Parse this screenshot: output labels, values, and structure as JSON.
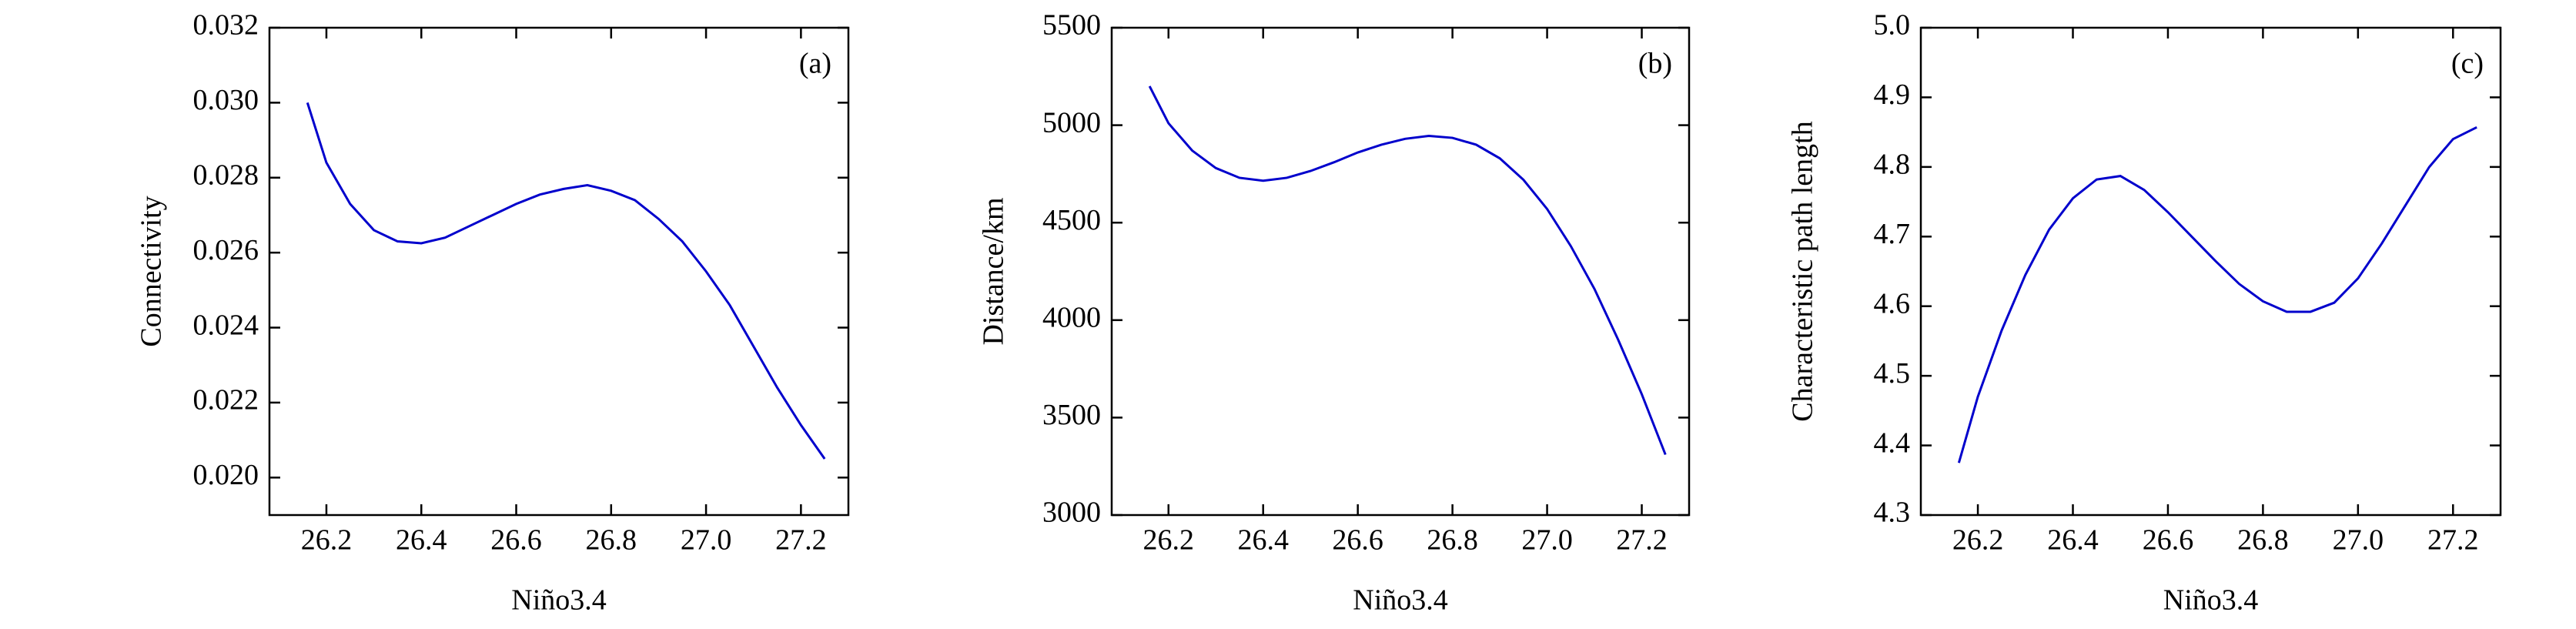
{
  "chart_data": [
    {
      "type": "line",
      "annotation": "(a)",
      "x_label": "Niño3.4",
      "y_label": "Connectivity",
      "x": [
        26.16,
        26.2,
        26.25,
        26.3,
        26.35,
        26.4,
        26.45,
        26.5,
        26.55,
        26.6,
        26.65,
        26.7,
        26.75,
        26.8,
        26.85,
        26.9,
        26.95,
        27.0,
        27.05,
        27.1,
        27.15,
        27.2,
        27.25
      ],
      "series": [
        {
          "color": "#0000cc",
          "values": [
            0.03,
            0.0284,
            0.0273,
            0.0266,
            0.0263,
            0.02625,
            0.0264,
            0.0267,
            0.027,
            0.0273,
            0.02755,
            0.0277,
            0.0278,
            0.02765,
            0.0274,
            0.0269,
            0.0263,
            0.0255,
            0.0246,
            0.0235,
            0.0224,
            0.0214,
            0.0205
          ]
        }
      ],
      "xlim": [
        26.08,
        27.3
      ],
      "xticks": [
        26.2,
        26.4,
        26.6,
        26.8,
        {
          "value": 27,
          "label": "27.0"
        },
        27.2
      ],
      "ylim": [
        0.019,
        0.032
      ],
      "yticks": [
        {
          "value": 0.02,
          "label": "0.020"
        },
        0.022,
        0.024,
        0.026,
        0.028,
        {
          "value": 0.03,
          "label": "0.030"
        },
        0.032
      ]
    },
    {
      "type": "line",
      "annotation": "(b)",
      "x_label": "Niño3.4",
      "y_label": "Distance/km",
      "x": [
        26.16,
        26.2,
        26.25,
        26.3,
        26.35,
        26.4,
        26.45,
        26.5,
        26.55,
        26.6,
        26.65,
        26.7,
        26.75,
        26.8,
        26.85,
        26.9,
        26.95,
        27.0,
        27.05,
        27.1,
        27.15,
        27.2,
        27.25
      ],
      "series": [
        {
          "color": "#0000cc",
          "values": [
            5200,
            5010,
            4870,
            4780,
            4730,
            4715,
            4730,
            4765,
            4810,
            4860,
            4900,
            4930,
            4945,
            4935,
            4900,
            4830,
            4720,
            4570,
            4380,
            4160,
            3900,
            3620,
            3310
          ]
        }
      ],
      "xlim": [
        26.08,
        27.3
      ],
      "xticks": [
        26.2,
        26.4,
        26.6,
        26.8,
        {
          "value": 27,
          "label": "27.0"
        },
        27.2
      ],
      "ylim": [
        3000,
        5500
      ],
      "yticks": [
        3000,
        3500,
        4000,
        4500,
        5000,
        5500
      ]
    },
    {
      "type": "line",
      "annotation": "(c)",
      "x_label": "Niño3.4",
      "y_label": "Characteristic path length",
      "x": [
        26.16,
        26.2,
        26.25,
        26.3,
        26.35,
        26.4,
        26.45,
        26.5,
        26.55,
        26.6,
        26.65,
        26.7,
        26.75,
        26.8,
        26.85,
        26.9,
        26.95,
        27.0,
        27.05,
        27.1,
        27.15,
        27.2,
        27.25
      ],
      "series": [
        {
          "color": "#0000cc",
          "values": [
            4.375,
            4.47,
            4.565,
            4.645,
            4.71,
            4.755,
            4.782,
            4.787,
            4.767,
            4.735,
            4.7,
            4.665,
            4.632,
            4.607,
            4.592,
            4.592,
            4.605,
            4.64,
            4.69,
            4.745,
            4.8,
            4.84,
            4.857
          ]
        }
      ],
      "xlim": [
        26.08,
        27.3
      ],
      "xticks": [
        26.2,
        26.4,
        26.6,
        26.8,
        {
          "value": 27,
          "label": "27.0"
        },
        27.2
      ],
      "ylim": [
        4.3,
        5.0
      ],
      "yticks": [
        4.3,
        4.4,
        4.5,
        4.6,
        4.7,
        4.8,
        4.9,
        {
          "value": 5,
          "label": "5.0"
        }
      ]
    }
  ]
}
